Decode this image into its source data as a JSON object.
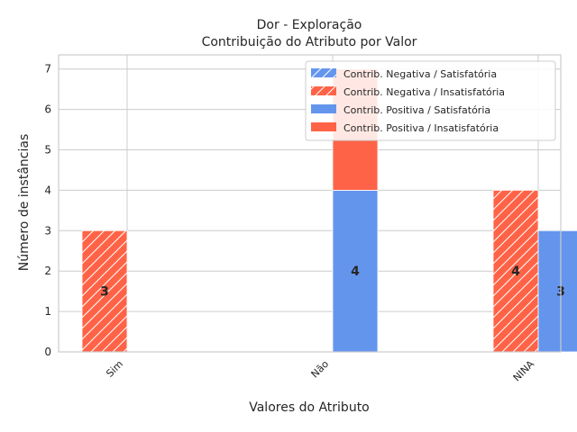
{
  "chart_data": {
    "type": "bar",
    "stacked": true,
    "title": "Dor - Exploração",
    "subtitle": "Contribuição do Atributo por Valor",
    "xlabel": "Valores do Atributo",
    "ylabel": "Número de instâncias",
    "categories": [
      "Sim",
      "Não",
      "NINA"
    ],
    "ylim": [
      0,
      7.35
    ],
    "yticks": [
      0,
      1,
      2,
      3,
      4,
      5,
      6,
      7
    ],
    "grid": true,
    "legend_position": "top-right",
    "groups": [
      {
        "name": "Contrib. Negativa",
        "series": [
          {
            "name": "Contrib. Negativa / Satisfatória",
            "color": "#6495ED",
            "hatch": true,
            "values": [
              0,
              0,
              0
            ]
          },
          {
            "name": "Contrib. Negativa / Insatisfatória",
            "color": "#FF6347",
            "hatch": true,
            "values": [
              3,
              0,
              4
            ]
          }
        ]
      },
      {
        "name": "Contrib. Positiva",
        "series": [
          {
            "name": "Contrib. Positiva / Satisfatória",
            "color": "#6495ED",
            "hatch": false,
            "values": [
              0,
              4,
              3
            ]
          },
          {
            "name": "Contrib. Positiva / Insatisfatória",
            "color": "#FF6347",
            "hatch": false,
            "values": [
              0,
              3,
              0
            ]
          }
        ]
      }
    ],
    "bar_labels": [
      {
        "category": "Sim",
        "group": 0,
        "text": "3",
        "value": 3
      },
      {
        "category": "Não",
        "group": 1,
        "text": "4",
        "value": 4
      },
      {
        "category": "NINA",
        "group": 0,
        "text": "4",
        "value": 4
      },
      {
        "category": "NINA",
        "group": 1,
        "text": "3",
        "value": 3
      }
    ]
  }
}
